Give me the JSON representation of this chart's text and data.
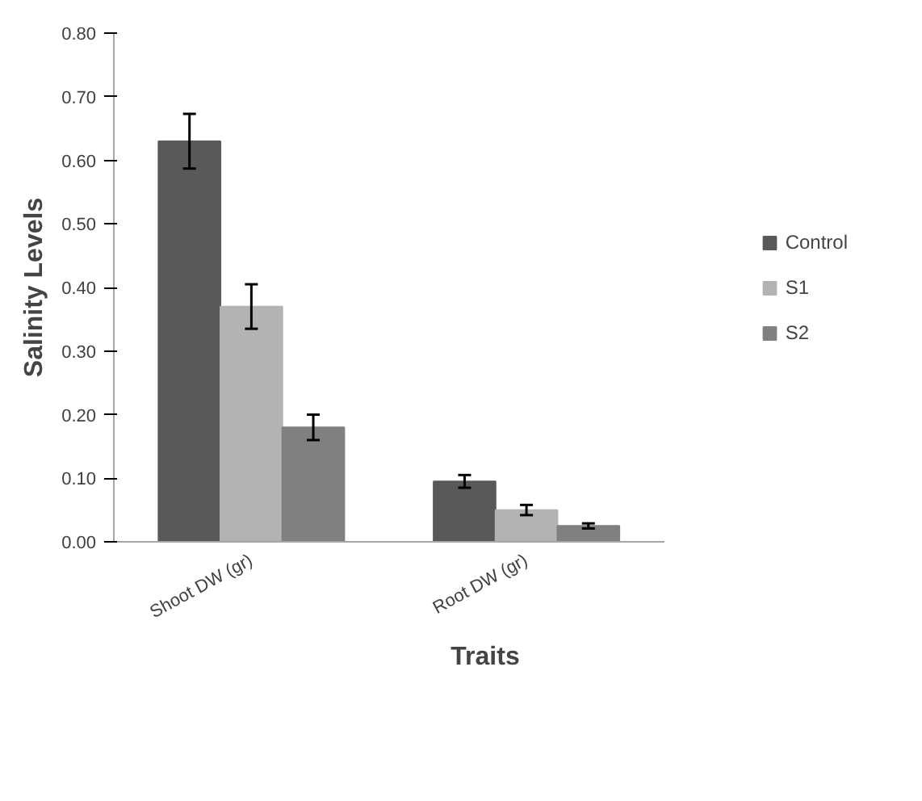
{
  "chart_data": {
    "type": "bar",
    "xlabel": "Traits",
    "ylabel": "Salinity Levels",
    "categories": [
      "Shoot DW (gr)",
      "Root DW (gr)"
    ],
    "series": [
      {
        "name": "Control",
        "color": "#595959",
        "values": [
          0.63,
          0.095
        ],
        "errors": [
          0.043,
          0.01
        ]
      },
      {
        "name": "S1",
        "color": "#b3b3b3",
        "values": [
          0.37,
          0.05
        ],
        "errors": [
          0.035,
          0.008
        ]
      },
      {
        "name": "S2",
        "color": "#808080",
        "values": [
          0.18,
          0.025
        ],
        "errors": [
          0.02,
          0.004
        ]
      }
    ],
    "ylim": [
      0,
      0.8
    ],
    "yticks": [
      {
        "value": 0,
        "label": "0.00"
      },
      {
        "value": 0.1,
        "label": "0.10"
      },
      {
        "value": 0.2,
        "label": "0.20"
      },
      {
        "value": 0.3,
        "label": "0.30"
      },
      {
        "value": 0.4,
        "label": "0.40"
      },
      {
        "value": 0.5,
        "label": "0.50"
      },
      {
        "value": 0.6,
        "label": "0.60"
      },
      {
        "value": 0.7,
        "label": "0.70"
      },
      {
        "value": 0.8,
        "label": "0.80"
      }
    ],
    "grid": false,
    "legend": "right"
  }
}
